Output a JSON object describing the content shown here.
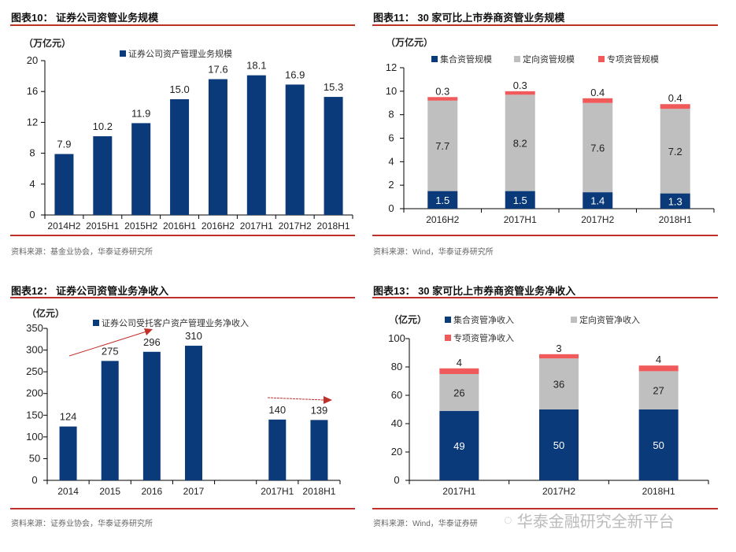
{
  "panels": [
    {
      "title": "图表10： 证券公司资管业务规模",
      "unit": "（万亿元）",
      "source": "资料来源：基金业协会，华泰证券研究所"
    },
    {
      "title": "图表11： 30 家可比上市券商资管业务规模",
      "unit": "（万亿元）",
      "source": "资料来源：Wind，华泰证券研究所"
    },
    {
      "title": "图表12： 证券公司资管业务净收入",
      "unit": "（亿元）",
      "source": "资料来源：证券业协会，华泰证券研究所"
    },
    {
      "title": "图表13： 30 家可比上市券商资管业务净收入",
      "unit": "（亿元）",
      "source": "资料来源：Wind，华泰证券研"
    }
  ],
  "watermark": "华泰金融研究全新平台",
  "chart_data": [
    {
      "type": "bar",
      "categories": [
        "2014H2",
        "2015H1",
        "2015H2",
        "2016H1",
        "2016H2",
        "2017H1",
        "2017H2",
        "2018H1"
      ],
      "series": [
        {
          "name": "证券公司资产管理业务规模",
          "values": [
            7.9,
            10.2,
            11.9,
            15.0,
            17.6,
            18.1,
            16.9,
            15.3
          ],
          "color": "#0b3a7a"
        }
      ],
      "ylim": [
        0,
        20
      ],
      "yticks": [
        0,
        4,
        8,
        12,
        16,
        20
      ],
      "ylabel": "（万亿元）",
      "legend": "top"
    },
    {
      "type": "stacked-bar",
      "categories": [
        "2016H2",
        "2017H1",
        "2017H2",
        "2018H1"
      ],
      "series": [
        {
          "name": "集合资管规模",
          "values": [
            1.5,
            1.5,
            1.4,
            1.3
          ],
          "color": "#0b3a7a"
        },
        {
          "name": "定向资管规模",
          "values": [
            7.7,
            8.2,
            7.6,
            7.2
          ],
          "color": "#bfbfbf"
        },
        {
          "name": "专项资管规模",
          "values": [
            0.3,
            0.3,
            0.4,
            0.4
          ],
          "color": "#f05a5a"
        }
      ],
      "ylim": [
        0,
        12
      ],
      "yticks": [
        0,
        2,
        4,
        6,
        8,
        10,
        12
      ],
      "ylabel": "（万亿元）",
      "legend": "top"
    },
    {
      "type": "bar",
      "categories": [
        "2014",
        "2015",
        "2016",
        "2017",
        "2017H1",
        "2018H1"
      ],
      "series": [
        {
          "name": "证券公司受托客户资产管理业务净收入",
          "values": [
            124,
            275,
            296,
            310,
            140,
            139
          ],
          "color": "#0b3a7a"
        }
      ],
      "ylim": [
        0,
        350
      ],
      "yticks": [
        0,
        50,
        100,
        150,
        200,
        250,
        300,
        350
      ],
      "ylabel": "（亿元）",
      "legend": "top"
    },
    {
      "type": "stacked-bar",
      "categories": [
        "2017H1",
        "2017H2",
        "2018H1"
      ],
      "series": [
        {
          "name": "集合资管净收入",
          "values": [
            49,
            50,
            50
          ],
          "color": "#0b3a7a"
        },
        {
          "name": "定向资管净收入",
          "values": [
            26,
            36,
            27
          ],
          "color": "#bfbfbf"
        },
        {
          "name": "专项资管净收入",
          "values": [
            4,
            3,
            4
          ],
          "color": "#f05a5a"
        }
      ],
      "ylim": [
        0,
        100
      ],
      "yticks": [
        0,
        20,
        40,
        60,
        80,
        100
      ],
      "ylabel": "（亿元）",
      "legend": "top"
    }
  ]
}
